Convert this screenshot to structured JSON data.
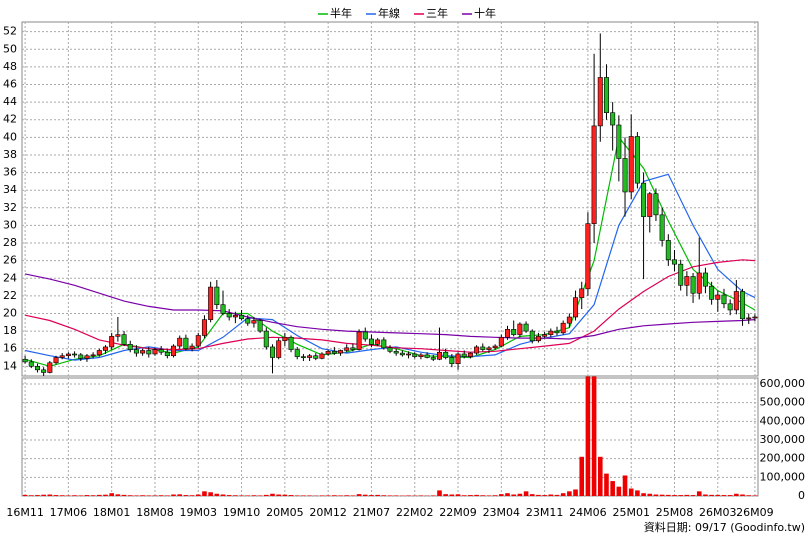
{
  "chart_data": {
    "type": "candlestick",
    "legend_position": "top",
    "grid": true,
    "up_color": "#ff2020",
    "down_color": "#22bb22",
    "footer": "資料日期: 09/17  (Goodinfo.tw)",
    "xlim": [
      -0.5,
      118.5
    ],
    "xticks": [
      {
        "value": 0,
        "label": "16M11"
      },
      {
        "value": 7,
        "label": "17M06"
      },
      {
        "value": 14,
        "label": "18M01"
      },
      {
        "value": 21,
        "label": "18M08"
      },
      {
        "value": 28,
        "label": "19M03"
      },
      {
        "value": 35,
        "label": "19M10"
      },
      {
        "value": 42,
        "label": "20M05"
      },
      {
        "value": 49,
        "label": "20M12"
      },
      {
        "value": 56,
        "label": "21M07"
      },
      {
        "value": 63,
        "label": "22M02"
      },
      {
        "value": 70,
        "label": "22M09"
      },
      {
        "value": 77,
        "label": "23M04"
      },
      {
        "value": 84,
        "label": "23M11"
      },
      {
        "value": 91,
        "label": "24M06"
      },
      {
        "value": 98,
        "label": "25M01"
      },
      {
        "value": 105,
        "label": "25M08"
      },
      {
        "value": 112,
        "label": "26M03"
      },
      {
        "value": 118,
        "label": "26M09"
      }
    ],
    "ylim": [
      12.9,
      53.1
    ],
    "yticks": [
      14,
      16,
      18,
      20,
      22,
      24,
      26,
      28,
      30,
      32,
      34,
      36,
      38,
      40,
      42,
      44,
      46,
      48,
      50,
      52
    ],
    "ohlc": [
      [
        14.8,
        15.2,
        14.3,
        14.5
      ],
      [
        14.5,
        14.8,
        13.8,
        14.0
      ],
      [
        14.0,
        14.3,
        13.3,
        13.6
      ],
      [
        13.6,
        13.9,
        12.9,
        13.3
      ],
      [
        13.3,
        14.6,
        13.2,
        14.4
      ],
      [
        14.4,
        15.2,
        14.2,
        15.0
      ],
      [
        15.0,
        15.5,
        14.8,
        15.2
      ],
      [
        15.2,
        15.6,
        14.9,
        15.4
      ],
      [
        15.4,
        15.7,
        15.0,
        15.3
      ],
      [
        15.3,
        15.5,
        14.6,
        14.9
      ],
      [
        14.9,
        15.4,
        14.5,
        15.2
      ],
      [
        15.2,
        15.6,
        14.9,
        15.3
      ],
      [
        15.3,
        16.0,
        15.1,
        15.8
      ],
      [
        15.8,
        16.4,
        15.4,
        16.2
      ],
      [
        16.2,
        17.8,
        15.9,
        17.4
      ],
      [
        17.4,
        19.6,
        16.8,
        17.6
      ],
      [
        17.6,
        18.0,
        16.3,
        16.5
      ],
      [
        16.5,
        16.9,
        15.6,
        15.9
      ],
      [
        15.9,
        16.4,
        15.1,
        15.5
      ],
      [
        15.5,
        16.0,
        15.2,
        15.8
      ],
      [
        15.8,
        16.2,
        15.0,
        15.4
      ],
      [
        15.4,
        16.1,
        15.2,
        15.9
      ],
      [
        15.9,
        16.3,
        15.3,
        15.6
      ],
      [
        15.6,
        16.0,
        14.9,
        15.2
      ],
      [
        15.2,
        16.5,
        15.0,
        16.3
      ],
      [
        16.3,
        17.5,
        16.0,
        17.2
      ],
      [
        17.2,
        17.6,
        15.8,
        16.0
      ],
      [
        16.0,
        16.6,
        15.7,
        16.3
      ],
      [
        16.3,
        17.8,
        16.1,
        17.5
      ],
      [
        17.5,
        19.8,
        17.2,
        19.3
      ],
      [
        19.3,
        23.6,
        19.0,
        23.0
      ],
      [
        23.0,
        23.8,
        20.5,
        21.0
      ],
      [
        21.0,
        22.6,
        19.8,
        20.0
      ],
      [
        20.0,
        20.5,
        19.2,
        19.6
      ],
      [
        19.6,
        20.2,
        18.9,
        19.8
      ],
      [
        19.8,
        20.4,
        19.2,
        19.4
      ],
      [
        19.4,
        19.8,
        18.6,
        18.9
      ],
      [
        18.9,
        19.6,
        18.4,
        19.2
      ],
      [
        19.2,
        19.4,
        17.8,
        18.0
      ],
      [
        18.0,
        18.4,
        15.9,
        16.2
      ],
      [
        16.2,
        16.5,
        13.2,
        15.0
      ],
      [
        15.0,
        17.2,
        14.8,
        16.9
      ],
      [
        16.9,
        17.8,
        16.3,
        17.3
      ],
      [
        17.3,
        17.5,
        15.6,
        15.9
      ],
      [
        15.9,
        16.2,
        14.8,
        15.1
      ],
      [
        15.1,
        15.4,
        14.6,
        15.0
      ],
      [
        15.0,
        15.4,
        14.6,
        15.2
      ],
      [
        15.2,
        15.5,
        14.7,
        14.9
      ],
      [
        14.9,
        15.6,
        14.8,
        15.4
      ],
      [
        15.4,
        15.9,
        15.2,
        15.7
      ],
      [
        15.7,
        16.2,
        15.3,
        15.5
      ],
      [
        15.5,
        15.9,
        15.2,
        15.8
      ],
      [
        15.8,
        16.5,
        15.6,
        16.1
      ],
      [
        16.1,
        16.6,
        15.7,
        15.9
      ],
      [
        15.9,
        18.2,
        15.8,
        17.9
      ],
      [
        17.9,
        18.4,
        16.8,
        17.1
      ],
      [
        17.1,
        17.6,
        16.2,
        16.5
      ],
      [
        16.5,
        17.2,
        16.3,
        17.0
      ],
      [
        17.0,
        17.3,
        15.9,
        16.1
      ],
      [
        16.1,
        16.4,
        15.5,
        15.7
      ],
      [
        15.7,
        16.0,
        15.2,
        15.5
      ],
      [
        15.5,
        15.8,
        15.1,
        15.3
      ],
      [
        15.3,
        15.7,
        14.9,
        15.4
      ],
      [
        15.4,
        15.6,
        14.9,
        15.1
      ],
      [
        15.1,
        15.5,
        14.8,
        15.3
      ],
      [
        15.3,
        15.6,
        14.9,
        15.0
      ],
      [
        15.0,
        15.3,
        14.6,
        14.8
      ],
      [
        14.8,
        18.4,
        14.7,
        15.6
      ],
      [
        15.6,
        16.0,
        14.8,
        15.0
      ],
      [
        15.0,
        15.4,
        13.9,
        14.3
      ],
      [
        14.3,
        15.6,
        13.6,
        15.4
      ],
      [
        15.4,
        15.8,
        14.9,
        15.1
      ],
      [
        15.1,
        15.6,
        14.9,
        15.5
      ],
      [
        15.5,
        16.4,
        15.3,
        16.2
      ],
      [
        16.2,
        16.6,
        15.7,
        15.9
      ],
      [
        15.9,
        16.3,
        15.5,
        16.1
      ],
      [
        16.1,
        16.5,
        15.9,
        16.3
      ],
      [
        16.3,
        17.6,
        16.2,
        17.3
      ],
      [
        17.3,
        18.6,
        17.0,
        18.2
      ],
      [
        18.2,
        19.2,
        17.4,
        17.6
      ],
      [
        17.6,
        19.0,
        17.3,
        18.8
      ],
      [
        18.8,
        19.1,
        17.8,
        18.0
      ],
      [
        18.0,
        18.2,
        16.6,
        16.9
      ],
      [
        16.9,
        17.8,
        16.7,
        17.4
      ],
      [
        17.4,
        17.9,
        17.2,
        17.6
      ],
      [
        17.6,
        18.3,
        17.3,
        18.0
      ],
      [
        18.0,
        18.5,
        17.5,
        17.8
      ],
      [
        17.8,
        19.2,
        17.6,
        18.9
      ],
      [
        18.9,
        20.0,
        18.4,
        19.6
      ],
      [
        19.6,
        22.6,
        19.2,
        21.8
      ],
      [
        21.8,
        23.6,
        20.5,
        22.8
      ],
      [
        22.8,
        31.5,
        22.0,
        30.2
      ],
      [
        30.2,
        49.5,
        28.0,
        41.3
      ],
      [
        41.3,
        51.8,
        39.5,
        46.8
      ],
      [
        46.8,
        48.3,
        42.0,
        42.8
      ],
      [
        42.8,
        44.0,
        38.5,
        41.4
      ],
      [
        41.4,
        42.5,
        35.0,
        37.6
      ],
      [
        37.6,
        40.0,
        31.0,
        33.8
      ],
      [
        33.8,
        42.6,
        33.0,
        40.1
      ],
      [
        40.1,
        40.6,
        34.2,
        34.8
      ],
      [
        34.8,
        36.0,
        23.9,
        31.0
      ],
      [
        31.0,
        33.8,
        29.2,
        33.6
      ],
      [
        33.6,
        34.2,
        30.5,
        31.2
      ],
      [
        31.2,
        32.0,
        27.6,
        28.3
      ],
      [
        28.3,
        29.0,
        25.4,
        26.1
      ],
      [
        26.1,
        27.2,
        24.8,
        25.6
      ],
      [
        25.6,
        26.1,
        22.6,
        23.2
      ],
      [
        23.2,
        24.8,
        22.0,
        24.2
      ],
      [
        24.2,
        24.6,
        21.2,
        22.3
      ],
      [
        22.3,
        28.6,
        21.6,
        24.6
      ],
      [
        24.6,
        25.2,
        22.3,
        23.1
      ],
      [
        23.1,
        23.6,
        21.0,
        21.6
      ],
      [
        21.6,
        22.6,
        20.2,
        22.1
      ],
      [
        22.1,
        22.8,
        20.6,
        21.1
      ],
      [
        21.1,
        21.6,
        19.8,
        20.4
      ],
      [
        20.4,
        23.8,
        19.9,
        22.5
      ],
      [
        22.5,
        22.8,
        18.6,
        19.4
      ],
      [
        19.4,
        20.0,
        18.8,
        19.5
      ],
      [
        19.5,
        19.9,
        19.1,
        19.6
      ]
    ],
    "series": [
      {
        "name": "半年",
        "color": "#00bb00",
        "x": [
          0,
          4,
          8,
          12,
          16,
          20,
          24,
          28,
          32,
          36,
          40,
          44,
          48,
          52,
          56,
          60,
          64,
          68,
          72,
          76,
          80,
          84,
          88,
          92,
          96,
          100,
          104,
          108,
          112,
          116,
          118
        ],
        "values": [
          14.8,
          14.0,
          14.8,
          15.2,
          16.5,
          16.0,
          15.5,
          16.2,
          20.0,
          20.0,
          18.0,
          16.5,
          15.3,
          15.6,
          16.5,
          16.0,
          15.2,
          15.1,
          15.0,
          15.9,
          17.4,
          17.6,
          18.4,
          26.0,
          40.0,
          36.5,
          30.5,
          25.0,
          22.6,
          21.2,
          20.4
        ]
      },
      {
        "name": "年線",
        "color": "#2266ee",
        "x": [
          0,
          4,
          8,
          12,
          16,
          20,
          24,
          28,
          32,
          36,
          40,
          44,
          48,
          52,
          56,
          60,
          64,
          68,
          72,
          76,
          80,
          84,
          88,
          92,
          96,
          100,
          104,
          108,
          112,
          116,
          118
        ],
        "values": [
          15.8,
          15.2,
          14.7,
          15.0,
          15.8,
          16.2,
          15.8,
          15.8,
          17.3,
          19.5,
          19.3,
          17.5,
          16.0,
          15.5,
          15.9,
          16.2,
          15.6,
          15.2,
          15.1,
          15.3,
          16.5,
          17.2,
          17.7,
          21.0,
          30.0,
          35.0,
          35.8,
          30.0,
          25.0,
          22.5,
          21.8
        ]
      },
      {
        "name": "三年",
        "color": "#dd0055",
        "x": [
          0,
          4,
          8,
          12,
          16,
          20,
          24,
          28,
          32,
          36,
          40,
          44,
          48,
          52,
          56,
          60,
          64,
          68,
          72,
          76,
          80,
          84,
          88,
          92,
          96,
          100,
          104,
          108,
          112,
          116,
          118
        ],
        "values": [
          19.8,
          19.2,
          18.2,
          17.0,
          16.4,
          16.0,
          15.9,
          16.0,
          16.6,
          17.1,
          17.3,
          17.2,
          17.0,
          16.6,
          16.4,
          16.1,
          16.0,
          15.8,
          15.6,
          15.7,
          16.0,
          16.3,
          16.6,
          18.0,
          20.5,
          22.5,
          24.2,
          25.3,
          25.8,
          26.1,
          26.0
        ]
      },
      {
        "name": "十年",
        "color": "#7a00a8",
        "x": [
          0,
          4,
          8,
          12,
          16,
          20,
          24,
          28,
          32,
          36,
          40,
          44,
          48,
          52,
          56,
          60,
          64,
          68,
          72,
          76,
          80,
          84,
          88,
          92,
          96,
          100,
          104,
          108,
          112,
          116,
          118
        ],
        "values": [
          24.5,
          23.9,
          23.2,
          22.3,
          21.4,
          20.8,
          20.4,
          20.4,
          20.3,
          19.6,
          19.0,
          18.5,
          18.2,
          18.0,
          17.9,
          17.8,
          17.7,
          17.6,
          17.4,
          17.3,
          17.2,
          17.2,
          17.1,
          17.5,
          18.2,
          18.6,
          18.8,
          19.0,
          19.1,
          19.2,
          19.3
        ]
      }
    ],
    "volume": {
      "color": "#ee0000",
      "ylim": [
        0,
        632000
      ],
      "yticks": [
        0,
        {
          "value": 100000,
          "label": "100,000"
        },
        {
          "value": 200000,
          "label": "200,000"
        },
        {
          "value": 300000,
          "label": "300,000"
        },
        {
          "value": 400000,
          "label": "400,000"
        },
        {
          "value": 500000,
          "label": "500,000"
        },
        {
          "value": 600000,
          "label": "600,000"
        }
      ],
      "values": [
        6000,
        4000,
        5000,
        7000,
        8000,
        5000,
        4000,
        3000,
        4000,
        3000,
        5000,
        4000,
        6000,
        7000,
        15000,
        9000,
        6000,
        4000,
        3000,
        4000,
        3000,
        3000,
        4000,
        3000,
        8000,
        9000,
        5000,
        4000,
        8000,
        25000,
        20000,
        12000,
        8000,
        5000,
        4000,
        3000,
        3000,
        4000,
        3000,
        6000,
        12000,
        8000,
        7000,
        5000,
        3000,
        3000,
        3000,
        2000,
        3000,
        3000,
        4000,
        3000,
        4000,
        3000,
        10000,
        7000,
        5000,
        6000,
        4000,
        3000,
        3000,
        2000,
        3000,
        2000,
        3000,
        2000,
        3000,
        30000,
        10000,
        8000,
        9000,
        4000,
        5000,
        6000,
        4000,
        3000,
        4000,
        10000,
        15000,
        8000,
        12000,
        25000,
        10000,
        6000,
        5000,
        8000,
        6000,
        15000,
        25000,
        35000,
        210000,
        640000,
        640000,
        210000,
        120000,
        80000,
        50000,
        110000,
        40000,
        30000,
        15000,
        12000,
        8000,
        7000,
        6000,
        5000,
        5000,
        6000,
        5000,
        25000,
        8000,
        6000,
        6000,
        5000,
        5000,
        12000,
        8000,
        4000,
        3000
      ]
    }
  }
}
